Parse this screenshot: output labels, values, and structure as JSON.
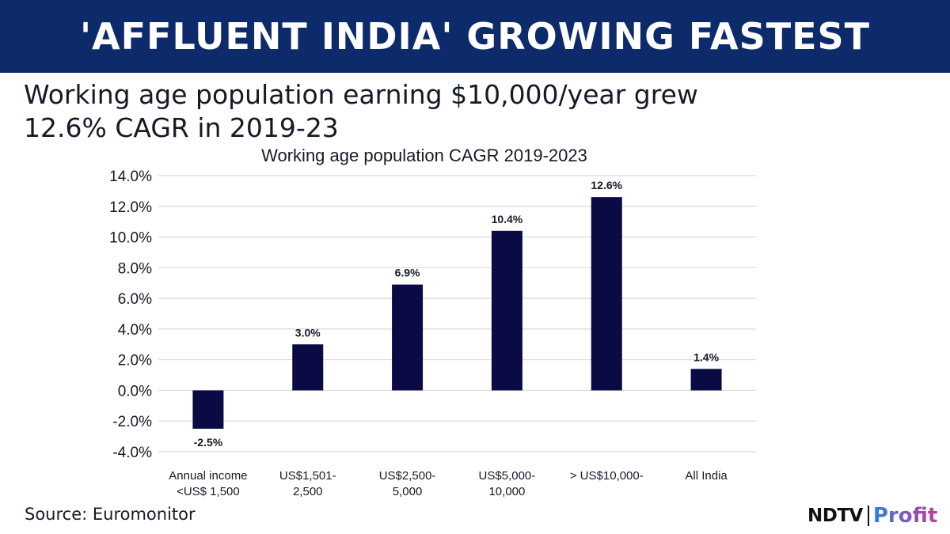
{
  "header": {
    "title": "'AFFLUENT INDIA' GROWING FASTEST",
    "subtitle_line1": "Working age population earning $10,000/year grew",
    "subtitle_line2": "12.6% CAGR in 2019-23"
  },
  "chart_data": {
    "type": "bar",
    "title": "Working age population CAGR 2019-2023",
    "categories": [
      [
        "Annual income",
        "<US$ 1,500"
      ],
      [
        "US$1,501-",
        "2,500"
      ],
      [
        "US$2,500-",
        "5,000"
      ],
      [
        "US$5,000-",
        "10,000"
      ],
      [
        "> US$10,000-"
      ],
      [
        "All India"
      ]
    ],
    "values": [
      -2.5,
      3.0,
      6.9,
      10.4,
      12.6,
      1.4
    ],
    "data_labels": [
      "-2.5%",
      "3.0%",
      "6.9%",
      "10.4%",
      "12.6%",
      "1.4%"
    ],
    "ylim": [
      -4.0,
      14.0
    ],
    "ytick_values": [
      -4,
      -2,
      0,
      2,
      4,
      6,
      8,
      10,
      12,
      14
    ],
    "ytick_labels": [
      "-4.0%",
      "-2.0%",
      "0.0%",
      "2.0%",
      "4.0%",
      "6.0%",
      "8.0%",
      "10.0%",
      "12.0%",
      "14.0%"
    ],
    "grid": true,
    "bar_color": "#0a0a45",
    "grid_color": "#d9d9d9"
  },
  "footer": {
    "source": "Source: Euromonitor",
    "logo_left": "NDTV",
    "logo_right": "Profit"
  },
  "colors": {
    "banner_bg": "#0d2a6b",
    "banner_text": "#ffffff",
    "text": "#151a26"
  }
}
